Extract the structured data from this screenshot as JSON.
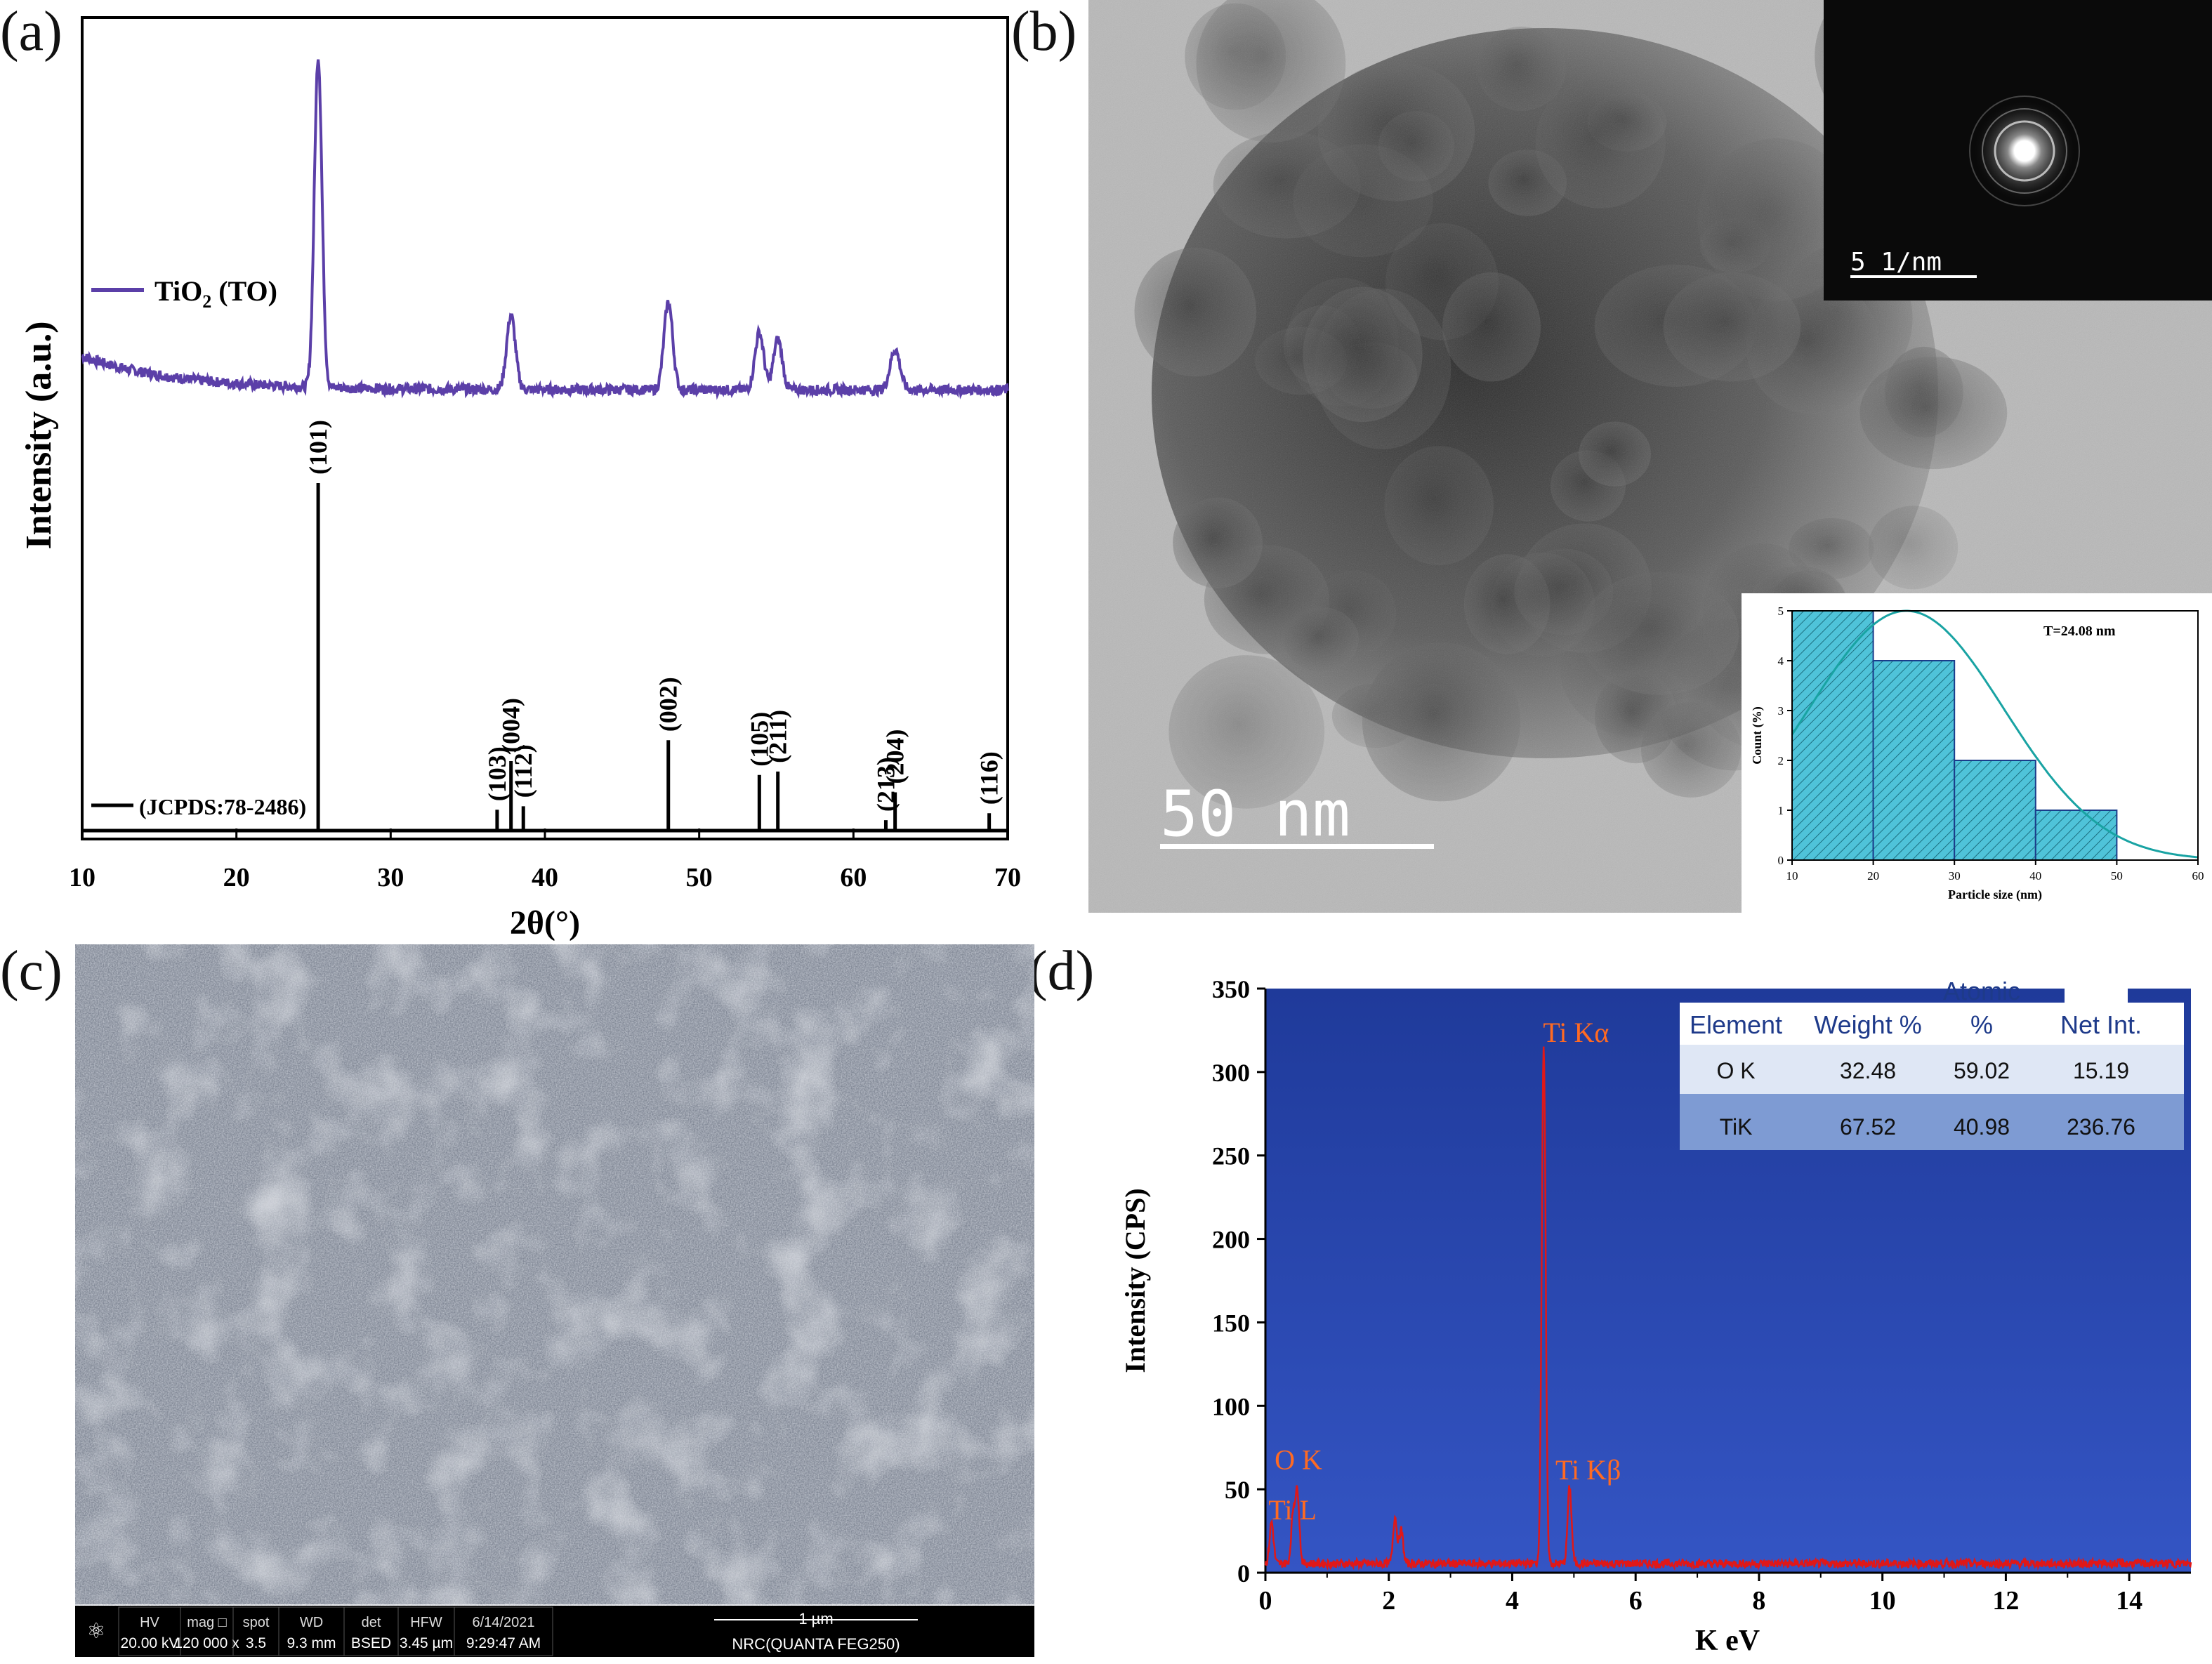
{
  "panels": {
    "a": {
      "label": "(a)"
    },
    "b": {
      "label": "(b)"
    },
    "c": {
      "label": "(c)"
    },
    "d": {
      "label": "(d)"
    }
  },
  "colors": {
    "xrd_line": "#5b3fa8",
    "sticks": "#000000",
    "eds_bg_top": "#1f3a9a",
    "eds_bg_bottom": "#3455c4",
    "eds_line": "#e01818",
    "eds_annot": "#ff6a22",
    "hist_fill": "#4fc3d9",
    "hist_curve": "#19a3a3"
  },
  "chart_data": [
    {
      "id": "xrd",
      "type": "line",
      "xlabel": "2θ(°)",
      "ylabel": "Intensity (a.u.)",
      "xlim": [
        10,
        70
      ],
      "xticks": [
        10,
        20,
        30,
        40,
        50,
        60,
        70
      ],
      "series": [
        {
          "name": "TiO2 (TO)",
          "peaks": [
            {
              "x": 25.3,
              "height": 0.98,
              "width": 0.35
            },
            {
              "x": 37.8,
              "height": 0.22,
              "width": 0.4
            },
            {
              "x": 48.0,
              "height": 0.26,
              "width": 0.4
            },
            {
              "x": 53.9,
              "height": 0.17,
              "width": 0.4
            },
            {
              "x": 55.1,
              "height": 0.15,
              "width": 0.4
            },
            {
              "x": 62.7,
              "height": 0.12,
              "width": 0.45
            }
          ]
        }
      ],
      "legend": {
        "main": "TiO",
        "sub": "2",
        "suffix": " (TO)"
      },
      "reference": {
        "name": "(JCPDS:78-2486)",
        "sticks": [
          {
            "x": 25.3,
            "h": 100,
            "label": "(101)"
          },
          {
            "x": 36.9,
            "h": 6,
            "label": "(103)"
          },
          {
            "x": 37.8,
            "h": 20,
            "label": "(004)"
          },
          {
            "x": 38.6,
            "h": 7,
            "label": "(112)"
          },
          {
            "x": 48.0,
            "h": 26,
            "label": "(002)"
          },
          {
            "x": 53.9,
            "h": 16,
            "label": "(105)"
          },
          {
            "x": 55.1,
            "h": 17,
            "label": "(211)"
          },
          {
            "x": 62.1,
            "h": 3,
            "label": "(213)"
          },
          {
            "x": 62.7,
            "h": 11,
            "label": "(204)"
          },
          {
            "x": 68.8,
            "h": 5,
            "label": "(116)"
          }
        ]
      }
    },
    {
      "id": "histogram",
      "type": "bar",
      "xlabel": "Particle size (nm)",
      "ylabel": "Count (%)",
      "annotation": "T=24.08 nm",
      "xlim": [
        10,
        60
      ],
      "ylim": [
        0,
        5
      ],
      "xticks": [
        10,
        20,
        30,
        40,
        50,
        60
      ],
      "yticks": [
        0,
        1,
        2,
        3,
        4,
        5
      ],
      "bins": [
        {
          "from": 10,
          "to": 20,
          "value": 5
        },
        {
          "from": 20,
          "to": 30,
          "value": 4
        },
        {
          "from": 30,
          "to": 40,
          "value": 2
        },
        {
          "from": 40,
          "to": 50,
          "value": 1
        }
      ],
      "fit_peak": 24.08
    },
    {
      "id": "eds",
      "type": "line",
      "xlabel": "K eV",
      "ylabel": "Intensity (CPS)",
      "xlim": [
        0,
        15
      ],
      "ylim": [
        0,
        350
      ],
      "xticks": [
        0,
        2,
        4,
        6,
        8,
        10,
        12,
        14
      ],
      "yticks": [
        0,
        50,
        100,
        150,
        200,
        250,
        300,
        350
      ],
      "peaks": [
        {
          "x": 0.1,
          "y": 25
        },
        {
          "x": 0.45,
          "y": 30
        },
        {
          "x": 0.52,
          "y": 42
        },
        {
          "x": 2.1,
          "y": 28
        },
        {
          "x": 2.2,
          "y": 20
        },
        {
          "x": 4.51,
          "y": 310
        },
        {
          "x": 4.93,
          "y": 46
        }
      ],
      "annotations": [
        {
          "text": "Ti Kα",
          "x": 4.5,
          "y": 318
        },
        {
          "text": "O K",
          "x": 0.15,
          "y": 62
        },
        {
          "text": "Ti L",
          "x": 0.05,
          "y": 32
        },
        {
          "text": "Ti Kβ",
          "x": 4.7,
          "y": 56
        }
      ],
      "table": {
        "headers": [
          "Element",
          "Weight %",
          "Atomic %",
          "Net Int."
        ],
        "rows": [
          [
            "O K",
            "32.48",
            "59.02",
            "15.19"
          ],
          [
            "TiK",
            "67.52",
            "40.98",
            "236.76"
          ]
        ]
      }
    }
  ],
  "tem": {
    "scale_bar": "50 nm",
    "saed_scale": "5 1/nm"
  },
  "sem": {
    "info_bar": {
      "fields": [
        {
          "label": "HV",
          "value": "20.00 kV"
        },
        {
          "label": "mag □",
          "value": "120 000 x"
        },
        {
          "label": "spot",
          "value": "3.5"
        },
        {
          "label": "WD",
          "value": "9.3 mm"
        },
        {
          "label": "det",
          "value": "BSED"
        },
        {
          "label": "HFW",
          "value": "3.45 µm"
        },
        {
          "label": "6/14/2021",
          "value": "9:29:47 AM"
        }
      ],
      "scale": "1 µm",
      "instrument": "NRC(QUANTA FEG250)"
    }
  }
}
